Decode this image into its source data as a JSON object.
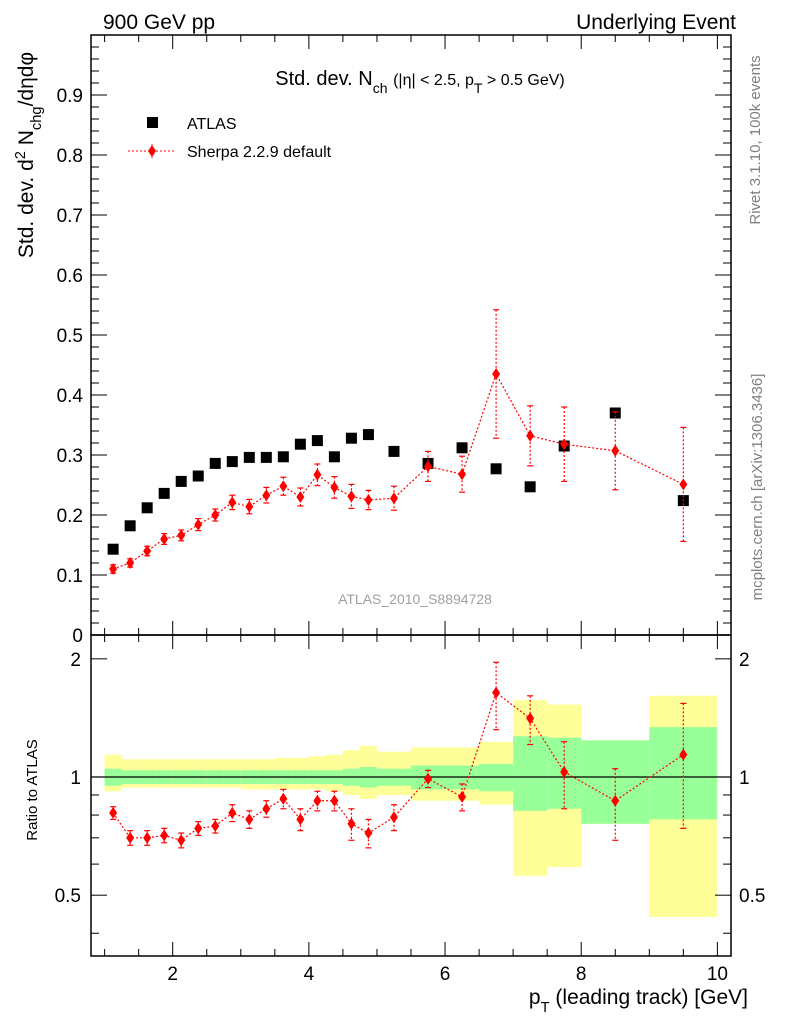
{
  "header": {
    "left": "900 GeV pp",
    "right": "Underlying Event"
  },
  "side_labels": {
    "rivet": "Rivet 3.1.10,  100k events",
    "mcplots": "mcplots.cern.ch [arXiv:1306.3436]"
  },
  "chart_data": [
    {
      "type": "scatter",
      "panel": "main",
      "title": "Std. dev. N_ch (|η| < 2.5, p_T > 0.5 GeV)",
      "ylabel": "Std. dev. d² N_chg/dηdφ",
      "analysis_label": "ATLAS_2010_S8894728",
      "xlim": [
        0.8,
        10.2
      ],
      "ylim": [
        0,
        1.0
      ],
      "y_ticks": [
        0,
        0.1,
        0.2,
        0.3,
        0.4,
        0.5,
        0.6,
        0.7,
        0.8,
        0.9
      ],
      "legend_position": "top-left",
      "series": [
        {
          "name": "ATLAS",
          "color": "#000000",
          "marker": "square",
          "x": [
            1.125,
            1.375,
            1.625,
            1.875,
            2.125,
            2.375,
            2.625,
            2.875,
            3.125,
            3.375,
            3.625,
            3.875,
            4.125,
            4.375,
            4.625,
            4.875,
            5.25,
            5.75,
            6.25,
            6.75,
            7.25,
            7.75,
            8.5,
            9.5
          ],
          "y": [
            0.143,
            0.182,
            0.212,
            0.236,
            0.256,
            0.265,
            0.286,
            0.289,
            0.296,
            0.296,
            0.297,
            0.318,
            0.324,
            0.297,
            0.328,
            0.334,
            0.306,
            0.286,
            0.312,
            0.277,
            0.247,
            0.315,
            0.37,
            0.224
          ]
        },
        {
          "name": "Sherpa 2.2.9 default",
          "color": "#ff0000",
          "marker": "diamond",
          "x": [
            1.125,
            1.375,
            1.625,
            1.875,
            2.125,
            2.375,
            2.625,
            2.875,
            3.125,
            3.375,
            3.625,
            3.875,
            4.125,
            4.375,
            4.625,
            4.875,
            5.25,
            5.75,
            6.25,
            6.75,
            7.25,
            7.75,
            8.5,
            9.5
          ],
          "y": [
            0.11,
            0.12,
            0.14,
            0.16,
            0.166,
            0.184,
            0.2,
            0.221,
            0.214,
            0.233,
            0.248,
            0.23,
            0.267,
            0.246,
            0.231,
            0.225,
            0.228,
            0.281,
            0.268,
            0.435,
            0.332,
            0.318,
            0.307,
            0.251
          ],
          "yerr": [
            0.007,
            0.007,
            0.008,
            0.009,
            0.009,
            0.01,
            0.01,
            0.012,
            0.012,
            0.013,
            0.015,
            0.015,
            0.018,
            0.018,
            0.02,
            0.016,
            0.02,
            0.025,
            0.03,
            0.107,
            0.05,
            0.062,
            0.065,
            0.095
          ]
        }
      ]
    },
    {
      "type": "scatter",
      "panel": "ratio",
      "ylabel": "Ratio to ATLAS",
      "xlabel": "p_T (leading track) [GeV]",
      "xlim": [
        0.8,
        10.2
      ],
      "ylim": [
        0.35,
        2.3
      ],
      "x_ticks": [
        2,
        4,
        6,
        8,
        10
      ],
      "y_ticks": [
        0.5,
        1,
        2
      ],
      "reference_line": 1,
      "uncertainty_bands": {
        "bin_edges": [
          1.0,
          1.25,
          1.5,
          1.75,
          2.0,
          2.25,
          2.5,
          2.75,
          3.0,
          3.25,
          3.5,
          3.75,
          4.0,
          4.25,
          4.5,
          4.75,
          5.0,
          5.5,
          6.0,
          6.5,
          7.0,
          7.5,
          8.0,
          9.0,
          10.0
        ],
        "inner_color": "#99ff99",
        "outer_color": "#ffff99",
        "inner_lo": [
          0.95,
          0.96,
          0.96,
          0.96,
          0.96,
          0.96,
          0.96,
          0.96,
          0.96,
          0.96,
          0.96,
          0.96,
          0.96,
          0.96,
          0.95,
          0.94,
          0.95,
          0.93,
          0.93,
          0.92,
          0.82,
          0.83,
          0.76,
          0.78
        ],
        "inner_hi": [
          1.05,
          1.04,
          1.04,
          1.04,
          1.04,
          1.04,
          1.04,
          1.04,
          1.04,
          1.04,
          1.04,
          1.04,
          1.04,
          1.04,
          1.05,
          1.06,
          1.05,
          1.07,
          1.07,
          1.08,
          1.27,
          1.26,
          1.24,
          1.34
        ],
        "outer_lo": [
          0.92,
          0.94,
          0.94,
          0.94,
          0.94,
          0.94,
          0.94,
          0.94,
          0.93,
          0.93,
          0.93,
          0.93,
          0.93,
          0.92,
          0.9,
          0.88,
          0.9,
          0.87,
          0.87,
          0.85,
          0.56,
          0.59,
          0.76,
          0.44
        ],
        "outer_hi": [
          1.14,
          1.11,
          1.11,
          1.11,
          1.11,
          1.11,
          1.11,
          1.11,
          1.11,
          1.11,
          1.12,
          1.12,
          1.13,
          1.14,
          1.17,
          1.2,
          1.16,
          1.19,
          1.19,
          1.23,
          1.57,
          1.53,
          1.24,
          1.61
        ]
      },
      "series": [
        {
          "name": "Sherpa 2.2.9 default",
          "color": "#ff0000",
          "marker": "diamond",
          "x": [
            1.125,
            1.375,
            1.625,
            1.875,
            2.125,
            2.375,
            2.625,
            2.875,
            3.125,
            3.375,
            3.625,
            3.875,
            4.125,
            4.375,
            4.625,
            4.875,
            5.25,
            5.75,
            6.25,
            6.75,
            7.25,
            7.75,
            8.5,
            9.5
          ],
          "y": [
            0.81,
            0.7,
            0.7,
            0.71,
            0.69,
            0.74,
            0.75,
            0.81,
            0.78,
            0.83,
            0.88,
            0.78,
            0.87,
            0.87,
            0.76,
            0.72,
            0.79,
            0.99,
            0.89,
            1.64,
            1.41,
            1.03,
            0.87,
            1.14
          ],
          "yerr": [
            0.03,
            0.03,
            0.03,
            0.03,
            0.03,
            0.03,
            0.03,
            0.04,
            0.04,
            0.04,
            0.05,
            0.05,
            0.05,
            0.05,
            0.07,
            0.06,
            0.06,
            0.05,
            0.07,
            0.32,
            0.2,
            0.2,
            0.18,
            0.4
          ]
        }
      ]
    }
  ]
}
